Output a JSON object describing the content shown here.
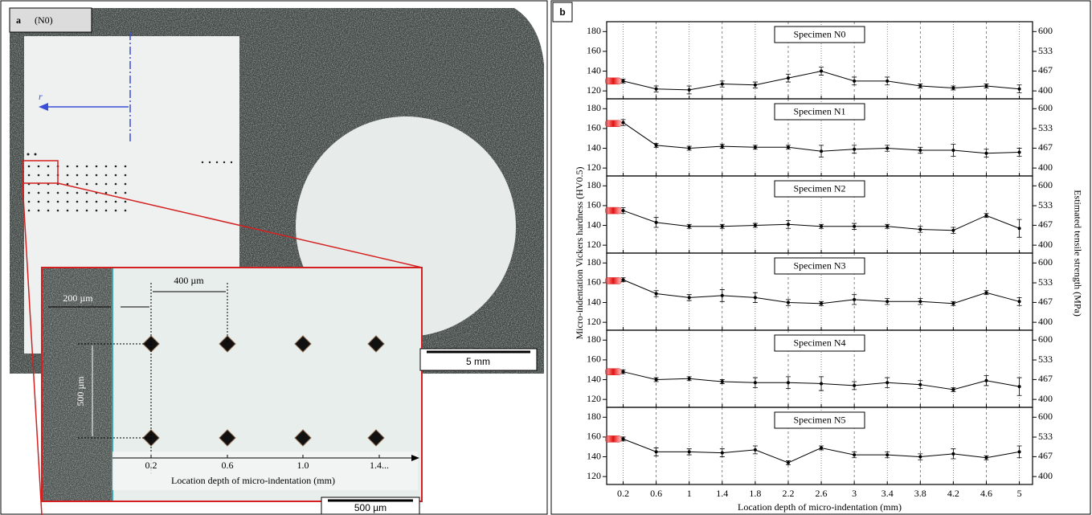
{
  "panel_a": {
    "label": "a",
    "specimen": "(N0)",
    "vector": "r⃗",
    "dim_400": "400 µm",
    "dim_200": "200 µm",
    "dim_500": "500 µm",
    "inset_ticks": [
      "0.2",
      "0.6",
      "1.0",
      "1.4..."
    ],
    "inset_xlabel": "Location depth of micro-indentation (mm)",
    "scale_bar": "5 mm",
    "inset_scale_bar": "500 µm"
  },
  "panel_b": {
    "label": "b",
    "xlabel": "Location depth of micro-indentation (mm)",
    "ylabel": "Micro-indentation Vickers hardness (HV0.5)",
    "y2label": "Estimated tensile strength (MPa)"
  },
  "chart_data": [
    {
      "type": "line",
      "title": "Specimen N0",
      "x": [
        0.2,
        0.6,
        1.0,
        1.4,
        1.8,
        2.2,
        2.6,
        3.0,
        3.4,
        3.8,
        4.2,
        4.6,
        5.0
      ],
      "values": [
        130,
        122,
        121,
        127,
        126,
        133,
        140,
        130,
        130,
        125,
        123,
        125,
        122
      ],
      "errors": [
        2,
        3,
        4,
        3,
        3,
        4,
        4,
        4,
        4,
        2,
        2,
        2,
        4
      ],
      "color": "#000000",
      "edge_marker": {
        "x": 0.08,
        "value": 130,
        "color": "#e02020"
      },
      "xlim": [
        0,
        5.16
      ],
      "ylim": [
        112,
        190
      ],
      "yticks": [
        120,
        140,
        160,
        180
      ],
      "y2lim": [
        373.3,
        633.3
      ],
      "y2ticks": [
        400,
        467,
        533,
        600
      ],
      "grid": true
    },
    {
      "type": "line",
      "title": "Specimen N1",
      "x": [
        0.2,
        0.6,
        1.0,
        1.4,
        1.8,
        2.2,
        2.6,
        3.0,
        3.4,
        3.8,
        4.2,
        4.6,
        5.0
      ],
      "values": [
        166,
        143,
        140,
        142,
        141,
        141,
        137,
        139,
        140,
        138,
        138,
        135,
        136
      ],
      "errors": [
        3,
        2,
        2,
        2,
        2,
        2,
        6,
        4,
        3,
        3,
        6,
        4,
        4
      ],
      "color": "#000000",
      "edge_marker": {
        "x": 0.08,
        "value": 165,
        "color": "#e02020"
      },
      "xlim": [
        0,
        5.16
      ],
      "ylim": [
        112,
        190
      ],
      "yticks": [
        120,
        140,
        160,
        180
      ],
      "y2lim": [
        373.3,
        633.3
      ],
      "y2ticks": [
        400,
        467,
        533,
        600
      ],
      "grid": true
    },
    {
      "type": "line",
      "title": "Specimen N2",
      "x": [
        0.2,
        0.6,
        1.0,
        1.4,
        1.8,
        2.2,
        2.6,
        3.0,
        3.4,
        3.8,
        4.2,
        4.6,
        5.0
      ],
      "values": [
        155,
        143,
        139,
        139,
        140,
        141,
        139,
        139,
        139,
        136,
        135,
        150,
        137
      ],
      "errors": [
        3,
        5,
        2,
        2,
        2,
        4,
        2,
        3,
        2,
        3,
        3,
        2,
        9
      ],
      "color": "#000000",
      "edge_marker": {
        "x": 0.08,
        "value": 155,
        "color": "#e02020"
      },
      "xlim": [
        0,
        5.16
      ],
      "ylim": [
        112,
        190
      ],
      "yticks": [
        120,
        140,
        160,
        180
      ],
      "y2lim": [
        373.3,
        633.3
      ],
      "y2ticks": [
        400,
        467,
        533,
        600
      ],
      "grid": true
    },
    {
      "type": "line",
      "title": "Specimen N3",
      "x": [
        0.2,
        0.6,
        1.0,
        1.4,
        1.8,
        2.2,
        2.6,
        3.0,
        3.4,
        3.8,
        4.2,
        4.6,
        5.0
      ],
      "values": [
        163,
        149,
        145,
        147,
        145,
        140,
        139,
        143,
        141,
        141,
        139,
        150,
        141
      ],
      "errors": [
        2,
        3,
        3,
        6,
        5,
        3,
        2,
        5,
        3,
        3,
        2,
        2,
        4
      ],
      "color": "#000000",
      "edge_marker": {
        "x": 0.08,
        "value": 162,
        "color": "#e02020"
      },
      "xlim": [
        0,
        5.16
      ],
      "ylim": [
        112,
        190
      ],
      "yticks": [
        120,
        140,
        160,
        180
      ],
      "y2lim": [
        373.3,
        633.3
      ],
      "y2ticks": [
        400,
        467,
        533,
        600
      ],
      "grid": true
    },
    {
      "type": "line",
      "title": "Specimen N4",
      "x": [
        0.2,
        0.6,
        1.0,
        1.4,
        1.8,
        2.2,
        2.6,
        3.0,
        3.4,
        3.8,
        4.2,
        4.6,
        5.0
      ],
      "values": [
        148,
        140,
        141,
        138,
        137,
        137,
        136,
        134,
        137,
        135,
        130,
        139,
        133
      ],
      "errors": [
        2,
        2,
        2,
        2,
        5,
        6,
        7,
        4,
        5,
        4,
        2,
        5,
        9
      ],
      "color": "#000000",
      "edge_marker": {
        "x": 0.08,
        "value": 148,
        "color": "#e02020"
      },
      "xlim": [
        0,
        5.16
      ],
      "ylim": [
        112,
        190
      ],
      "yticks": [
        120,
        140,
        160,
        180
      ],
      "y2lim": [
        373.3,
        633.3
      ],
      "y2ticks": [
        400,
        467,
        533,
        600
      ],
      "grid": true
    },
    {
      "type": "line",
      "title": "Specimen N5",
      "x": [
        0.2,
        0.6,
        1.0,
        1.4,
        1.8,
        2.2,
        2.6,
        3.0,
        3.4,
        3.8,
        4.2,
        4.6,
        5.0
      ],
      "values": [
        158,
        145,
        145,
        144,
        147,
        134,
        149,
        142,
        142,
        140,
        143,
        139,
        145
      ],
      "errors": [
        2,
        4,
        3,
        4,
        4,
        2,
        2,
        3,
        3,
        3,
        5,
        2,
        6
      ],
      "color": "#000000",
      "edge_marker": {
        "x": 0.08,
        "value": 158,
        "color": "#e02020"
      },
      "xlim": [
        0,
        5.16
      ],
      "ylim": [
        112,
        190
      ],
      "yticks": [
        120,
        140,
        160,
        180
      ],
      "y2lim": [
        373.3,
        633.3
      ],
      "y2ticks": [
        400,
        467,
        533,
        600
      ],
      "grid": true
    }
  ]
}
